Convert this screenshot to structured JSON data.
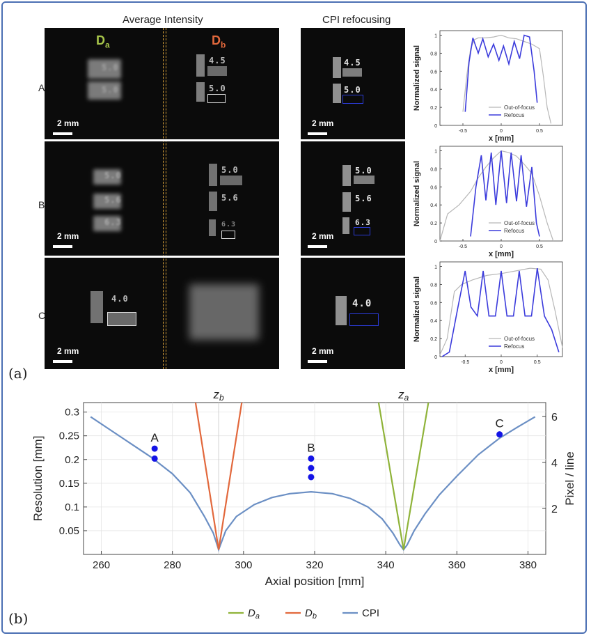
{
  "figure": {
    "header_avg": "Average Intensity",
    "header_cpi": "CPI refocusing",
    "label_da_main": "D",
    "label_da_sub": "a",
    "label_db_main": "D",
    "label_db_sub": "b",
    "rows": [
      "A",
      "B",
      "C"
    ],
    "scale_bar": "2 mm",
    "sub_a": "(a)",
    "sub_b": "(b)",
    "target_labels": {
      "A_db": [
        "4.5",
        "5.0"
      ],
      "A_cpi": [
        "4.5",
        "5.0"
      ],
      "A_da": [
        "5.0",
        "5.0"
      ],
      "B_da": [
        "5.0",
        "5.6",
        "6.3"
      ],
      "B_db": [
        "5.0",
        "5.6",
        "6.3"
      ],
      "B_cpi": [
        "5.0",
        "5.6",
        "6.3"
      ],
      "C_da": [
        "4.0"
      ],
      "C_cpi": [
        "4.0"
      ]
    },
    "colors": {
      "da": "#8fb339",
      "db": "#e2683c",
      "cpi": "#6b8fc4",
      "refocus": "#3b3bdc",
      "outfocus": "#b7b7b7",
      "point": "#1414e6"
    }
  },
  "chart_data": [
    {
      "type": "line",
      "panel": "A",
      "xlabel": "x [mm]",
      "ylabel": "Normalized signal",
      "xlim": [
        -0.8,
        0.8
      ],
      "ylim": [
        0,
        1.05
      ],
      "xticks": [
        "-0.5",
        "0",
        "0.5"
      ],
      "yticks": [
        "0",
        "0.2",
        "0.4",
        "0.6",
        "0.8",
        "1"
      ],
      "legend": [
        "Out-of-focus",
        "Refocus"
      ],
      "series": [
        {
          "name": "Out-of-focus",
          "x": [
            -0.5,
            -0.45,
            -0.4,
            -0.35,
            -0.3,
            -0.2,
            -0.1,
            0,
            0.1,
            0.2,
            0.3,
            0.4,
            0.5,
            0.55,
            0.6,
            0.65
          ],
          "y": [
            0.15,
            0.55,
            0.85,
            0.95,
            0.97,
            0.97,
            0.98,
            1.0,
            0.97,
            0.96,
            0.93,
            0.9,
            0.85,
            0.55,
            0.2,
            0.02
          ]
        },
        {
          "name": "Refocus",
          "x": [
            -0.47,
            -0.42,
            -0.37,
            -0.3,
            -0.24,
            -0.17,
            -0.1,
            -0.03,
            0.03,
            0.1,
            0.17,
            0.24,
            0.3,
            0.37,
            0.43,
            0.47
          ],
          "y": [
            0.15,
            0.7,
            0.97,
            0.8,
            0.96,
            0.76,
            0.9,
            0.72,
            0.88,
            0.68,
            0.93,
            0.74,
            1.0,
            0.98,
            0.6,
            0.25
          ]
        }
      ]
    },
    {
      "type": "line",
      "panel": "B",
      "xlabel": "x [mm]",
      "ylabel": "Normalized signal",
      "xlim": [
        -0.8,
        0.8
      ],
      "ylim": [
        0,
        1.05
      ],
      "xticks": [
        "-0.5",
        "0",
        "0.5"
      ],
      "yticks": [
        "0",
        "0.2",
        "0.4",
        "0.6",
        "0.8",
        "1"
      ],
      "legend": [
        "Out-of-focus",
        "Refocus"
      ],
      "series": [
        {
          "name": "Out-of-focus",
          "x": [
            -0.8,
            -0.7,
            -0.55,
            -0.4,
            -0.3,
            -0.2,
            -0.1,
            0,
            0.1,
            0.2,
            0.3,
            0.4,
            0.5,
            0.6,
            0.68
          ],
          "y": [
            0.0,
            0.3,
            0.4,
            0.55,
            0.7,
            0.82,
            0.92,
            1.0,
            0.98,
            0.94,
            0.85,
            0.75,
            0.5,
            0.2,
            0.0
          ]
        },
        {
          "name": "Refocus",
          "x": [
            -0.4,
            -0.33,
            -0.26,
            -0.2,
            -0.13,
            -0.07,
            0,
            0.07,
            0.13,
            0.2,
            0.26,
            0.33,
            0.4,
            0.46,
            0.5
          ],
          "y": [
            0.05,
            0.6,
            0.95,
            0.45,
            0.98,
            0.4,
            1.0,
            0.42,
            0.98,
            0.44,
            0.95,
            0.38,
            0.82,
            0.2,
            0.05
          ]
        }
      ]
    },
    {
      "type": "line",
      "panel": "C",
      "xlabel": "x [mm]",
      "ylabel": "Normalized signal",
      "xlim": [
        -0.85,
        0.85
      ],
      "ylim": [
        0,
        1.05
      ],
      "xticks": [
        "-0.5",
        "0",
        "0.5"
      ],
      "yticks": [
        "0",
        "0.2",
        "0.4",
        "0.6",
        "0.8",
        "1"
      ],
      "legend": [
        "Out-of-focus",
        "Refocus"
      ],
      "series": [
        {
          "name": "Out-of-focus",
          "x": [
            -0.85,
            -0.75,
            -0.65,
            -0.55,
            -0.4,
            -0.2,
            0,
            0.2,
            0.4,
            0.55,
            0.65,
            0.75,
            0.85
          ],
          "y": [
            0.02,
            0.2,
            0.72,
            0.8,
            0.85,
            0.9,
            0.92,
            0.95,
            0.98,
            0.97,
            0.85,
            0.5,
            0.1
          ]
        },
        {
          "name": "Refocus",
          "x": [
            -0.82,
            -0.72,
            -0.6,
            -0.5,
            -0.42,
            -0.33,
            -0.25,
            -0.17,
            -0.08,
            0,
            0.08,
            0.17,
            0.25,
            0.33,
            0.42,
            0.5,
            0.6,
            0.7,
            0.8
          ],
          "y": [
            0.0,
            0.05,
            0.55,
            0.95,
            0.55,
            0.45,
            0.95,
            0.45,
            0.45,
            0.95,
            0.45,
            0.45,
            0.95,
            0.45,
            0.45,
            0.98,
            0.45,
            0.3,
            0.05
          ]
        }
      ]
    },
    {
      "type": "line",
      "panel": "b",
      "xlabel": "Axial position [mm]",
      "ylabel": "Resolution [mm]",
      "y2label": "Pixel / line",
      "xlim": [
        255,
        385
      ],
      "ylim": [
        0,
        0.32
      ],
      "xticks": [
        "260",
        "280",
        "300",
        "320",
        "340",
        "360",
        "380"
      ],
      "yticks": [
        "0.05",
        "0.1",
        "0.15",
        "0.2",
        "0.25",
        "0.3"
      ],
      "y2ticks": [
        "2",
        "4",
        "6"
      ],
      "top_labels": [
        "z",
        "b",
        "z",
        "a"
      ],
      "legend": [
        "D",
        "a",
        "D",
        "b",
        "CPI"
      ],
      "za": 345,
      "zb": 293,
      "series": [
        {
          "name": "CPI",
          "x": [
            257,
            262,
            268,
            274,
            280,
            285,
            289,
            291.5,
            293,
            295,
            298,
            303,
            308,
            313,
            319,
            325,
            330,
            335,
            339,
            342,
            344,
            345,
            346,
            348,
            351,
            355,
            360,
            366,
            372,
            377,
            382
          ],
          "y": [
            0.29,
            0.265,
            0.235,
            0.205,
            0.17,
            0.13,
            0.08,
            0.045,
            0.01,
            0.05,
            0.08,
            0.105,
            0.12,
            0.128,
            0.132,
            0.128,
            0.118,
            0.1,
            0.075,
            0.045,
            0.02,
            0.01,
            0.02,
            0.05,
            0.085,
            0.125,
            0.165,
            0.21,
            0.245,
            0.268,
            0.29
          ]
        },
        {
          "name": "Db",
          "x": [
            286.5,
            293,
            299.5
          ],
          "y": [
            0.32,
            0.01,
            0.32
          ]
        },
        {
          "name": "Da",
          "x": [
            338,
            345,
            352
          ],
          "y": [
            0.32,
            0.01,
            0.32
          ]
        }
      ],
      "points": [
        {
          "label": "A",
          "x": 275,
          "y": [
            0.223,
            0.202
          ]
        },
        {
          "label": "B",
          "x": 319,
          "y": [
            0.202,
            0.182,
            0.163
          ]
        },
        {
          "label": "C",
          "x": 372,
          "y": [
            0.253
          ]
        }
      ]
    }
  ]
}
